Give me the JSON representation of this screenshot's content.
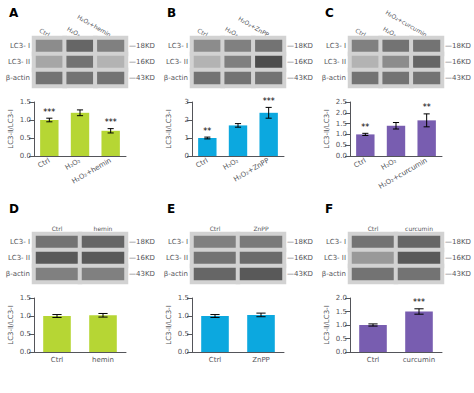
{
  "chart_data": [
    {
      "type": "heatmap",
      "title": "A",
      "categories": [
        "Ctrl",
        "H₂O₂",
        "H₂O₂+hemin"
      ],
      "y_categories": [
        "LC3- I",
        "LC3- II",
        "β-actin"
      ],
      "annotations": [
        "—18KD",
        "—16KD",
        "—43KD"
      ],
      "values": [
        [
          0.45,
          0.6,
          0.5
        ],
        [
          0.35,
          0.55,
          0.3
        ],
        [
          0.55,
          0.55,
          0.55
        ]
      ],
      "zlim": [
        0,
        1
      ]
    },
    {
      "type": "bar",
      "categories": [
        "Ctrl",
        "H₂O₂",
        "H₂O₂+hemin"
      ],
      "values": [
        1.0,
        1.2,
        0.7
      ],
      "errors": [
        0.05,
        0.08,
        0.06
      ],
      "annotations": [
        "***",
        null,
        "***"
      ],
      "ylabel": "LC3-Ⅱ/LC3-Ⅰ",
      "ylim": [
        0,
        1.5
      ],
      "yticks": [
        {
          "value": 0,
          "label": "0.0"
        },
        0.5,
        {
          "value": 1,
          "label": "1.0"
        },
        1.5
      ],
      "grid": false
    },
    {
      "type": "heatmap",
      "title": "B",
      "categories": [
        "Ctrl",
        "H₂O₂",
        "H₂O₂+ZnPP"
      ],
      "y_categories": [
        "LC3- I",
        "LC3- II",
        "β-actin"
      ],
      "annotations": [
        "—18KD",
        "—16KD",
        "—43KD"
      ],
      "values": [
        [
          0.45,
          0.5,
          0.55
        ],
        [
          0.3,
          0.5,
          0.7
        ],
        [
          0.55,
          0.55,
          0.55
        ]
      ],
      "zlim": [
        0,
        1
      ]
    },
    {
      "type": "bar",
      "categories": [
        "Ctrl",
        "H₂O₂",
        "H₂O₂+ZnPP"
      ],
      "values": [
        1.0,
        1.7,
        2.4
      ],
      "errors": [
        0.05,
        0.1,
        0.3
      ],
      "annotations": [
        "**",
        null,
        "***"
      ],
      "ylabel": "LC3-Ⅱ/LC3-Ⅰ",
      "ylim": [
        0,
        3
      ],
      "yticks": [
        0,
        1,
        2,
        3
      ],
      "grid": false
    },
    {
      "type": "heatmap",
      "title": "C",
      "categories": [
        "Ctrl",
        "H₂O₂",
        "H₂O₂+curcumin"
      ],
      "y_categories": [
        "LC3- I",
        "LC3- II",
        "β-actin"
      ],
      "annotations": [
        "—18KD",
        "—16KD",
        "—43KD"
      ],
      "values": [
        [
          0.5,
          0.55,
          0.55
        ],
        [
          0.3,
          0.45,
          0.6
        ],
        [
          0.55,
          0.55,
          0.55
        ]
      ],
      "zlim": [
        0,
        1
      ]
    },
    {
      "type": "bar",
      "categories": [
        "Ctrl",
        "H₂O₂",
        "H₂O₂+curcumin"
      ],
      "values": [
        1.0,
        1.4,
        1.65
      ],
      "errors": [
        0.05,
        0.15,
        0.3
      ],
      "annotations": [
        "**",
        null,
        "**"
      ],
      "ylabel": "LC3-Ⅱ/LC3-Ⅰ",
      "ylim": [
        0,
        2.5
      ],
      "yticks": [
        {
          "value": 0,
          "label": "0.0"
        },
        0.5,
        {
          "value": 1,
          "label": "1.0"
        },
        1.5,
        {
          "value": 2,
          "label": "2.0"
        },
        2.5
      ],
      "grid": false
    },
    {
      "type": "heatmap",
      "title": "D",
      "categories": [
        "Ctrl",
        "hemin"
      ],
      "y_categories": [
        "LC3- I",
        "LC3- II",
        "β-actin"
      ],
      "annotations": [
        "—18KD",
        "—16KD",
        "—43KD"
      ],
      "values": [
        [
          0.55,
          0.6
        ],
        [
          0.65,
          0.65
        ],
        [
          0.5,
          0.5
        ]
      ],
      "zlim": [
        0,
        1
      ]
    },
    {
      "type": "bar",
      "categories": [
        "Ctrl",
        "hemin"
      ],
      "values": [
        1.0,
        1.02
      ],
      "errors": [
        0.04,
        0.05
      ],
      "annotations": [
        null,
        null
      ],
      "ylabel": "LC3-Ⅱ/LC3-Ⅰ",
      "ylim": [
        0,
        1.5
      ],
      "yticks": [
        {
          "value": 0,
          "label": "0.0"
        },
        0.5,
        {
          "value": 1,
          "label": "1.0"
        },
        1.5
      ],
      "grid": false
    },
    {
      "type": "heatmap",
      "title": "E",
      "categories": [
        "Ctrl",
        "ZnPP"
      ],
      "y_categories": [
        "LC3- I",
        "LC3- II",
        "β-actin"
      ],
      "annotations": [
        "—18KD",
        "—16KD",
        "—43KD"
      ],
      "values": [
        [
          0.5,
          0.52
        ],
        [
          0.55,
          0.58
        ],
        [
          0.6,
          0.65
        ]
      ],
      "zlim": [
        0,
        1
      ]
    },
    {
      "type": "bar",
      "categories": [
        "Ctrl",
        "ZnPP"
      ],
      "values": [
        1.0,
        1.03
      ],
      "errors": [
        0.04,
        0.05
      ],
      "annotations": [
        null,
        null
      ],
      "ylabel": "LC3-Ⅱ/LC3-Ⅰ",
      "ylim": [
        0,
        1.5
      ],
      "yticks": [
        {
          "value": 0,
          "label": "0.0"
        },
        0.5,
        {
          "value": 1,
          "label": "1.0"
        },
        1.5
      ],
      "grid": false
    },
    {
      "type": "heatmap",
      "title": "F",
      "categories": [
        "Ctrl",
        "curcumin"
      ],
      "y_categories": [
        "LC3- I",
        "LC3- II",
        "β-actin"
      ],
      "annotations": [
        "—18KD",
        "—16KD",
        "—43KD"
      ],
      "values": [
        [
          0.55,
          0.6
        ],
        [
          0.4,
          0.65
        ],
        [
          0.55,
          0.55
        ]
      ],
      "zlim": [
        0,
        1
      ]
    },
    {
      "type": "bar",
      "categories": [
        "Ctrl",
        "curcumin"
      ],
      "values": [
        1.0,
        1.5
      ],
      "errors": [
        0.04,
        0.1
      ],
      "annotations": [
        null,
        "***"
      ],
      "ylabel": "LC3-Ⅱ/LC3-Ⅰ",
      "ylim": [
        0,
        2
      ],
      "yticks": [
        {
          "value": 0,
          "label": "0.0"
        },
        0.5,
        {
          "value": 1,
          "label": "1.0"
        },
        1.5,
        {
          "value": 2,
          "label": "2.0"
        }
      ],
      "grid": false
    }
  ]
}
